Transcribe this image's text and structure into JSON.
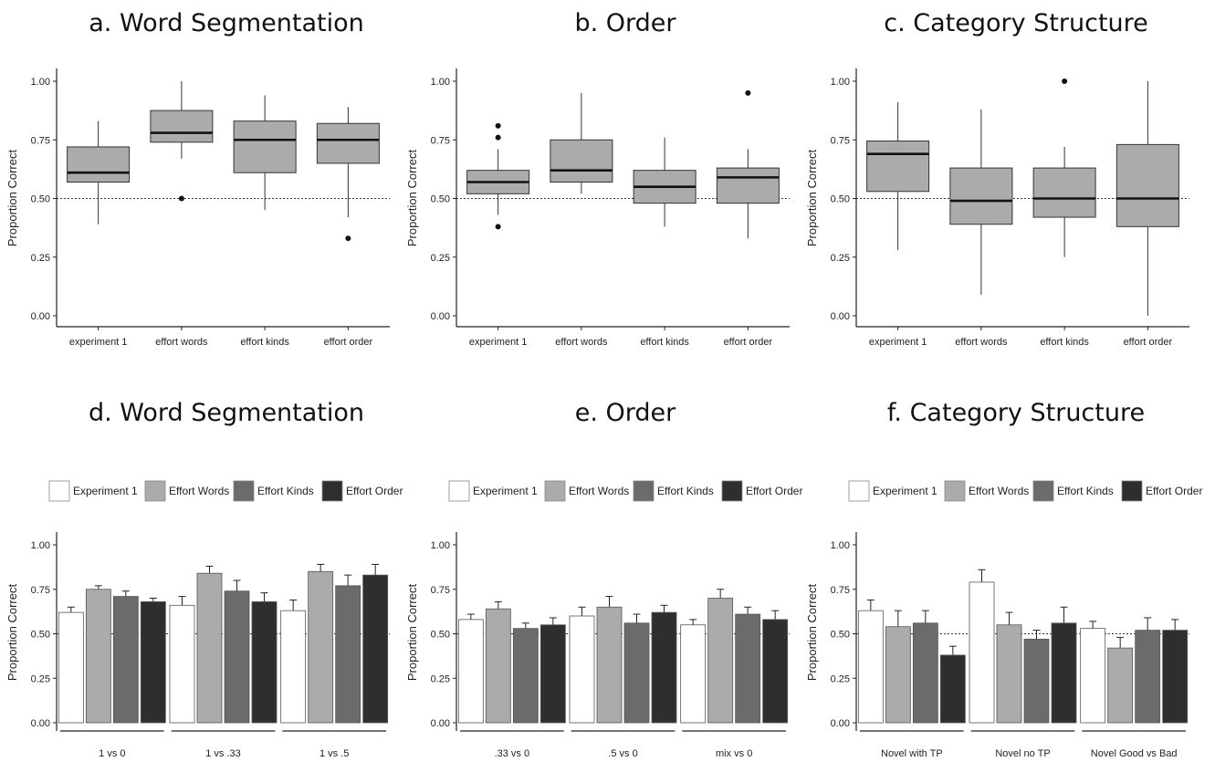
{
  "colors": {
    "box_fill": "#ababab",
    "series": [
      "#ffffff",
      "#ababab",
      "#6b6b6b",
      "#2e2e2e"
    ],
    "ink": "#222222"
  },
  "chart_data": [
    {
      "type": "box",
      "title": "a. Word Segmentation",
      "xlabel": "",
      "ylabel": "Proportion Correct",
      "ylim": [
        0,
        1
      ],
      "yticks": [
        "0.00",
        "0.25",
        "0.50",
        "0.75",
        "1.00"
      ],
      "reference_line": 0.5,
      "categories": [
        "experiment 1",
        "effort words",
        "effort kinds",
        "effort order"
      ],
      "boxes": [
        {
          "min": 0.39,
          "q1": 0.57,
          "median": 0.61,
          "q3": 0.72,
          "max": 0.83,
          "outliers": []
        },
        {
          "min": 0.67,
          "q1": 0.74,
          "median": 0.78,
          "q3": 0.875,
          "max": 1.0,
          "outliers": [
            0.5
          ]
        },
        {
          "min": 0.45,
          "q1": 0.61,
          "median": 0.75,
          "q3": 0.83,
          "max": 0.94,
          "outliers": []
        },
        {
          "min": 0.42,
          "q1": 0.65,
          "median": 0.75,
          "q3": 0.82,
          "max": 0.89,
          "outliers": [
            0.33
          ]
        }
      ]
    },
    {
      "type": "box",
      "title": "b. Order",
      "xlabel": "",
      "ylabel": "Proportion Correct",
      "ylim": [
        0,
        1
      ],
      "yticks": [
        "0.00",
        "0.25",
        "0.50",
        "0.75",
        "1.00"
      ],
      "reference_line": 0.5,
      "categories": [
        "experiment 1",
        "effort words",
        "effort kinds",
        "effort order"
      ],
      "boxes": [
        {
          "min": 0.43,
          "q1": 0.52,
          "median": 0.57,
          "q3": 0.62,
          "max": 0.71,
          "outliers": [
            0.81,
            0.76,
            0.38
          ]
        },
        {
          "min": 0.52,
          "q1": 0.57,
          "median": 0.62,
          "q3": 0.75,
          "max": 0.95,
          "outliers": []
        },
        {
          "min": 0.38,
          "q1": 0.48,
          "median": 0.55,
          "q3": 0.62,
          "max": 0.76,
          "outliers": []
        },
        {
          "min": 0.33,
          "q1": 0.48,
          "median": 0.59,
          "q3": 0.63,
          "max": 0.71,
          "outliers": [
            0.95
          ]
        }
      ]
    },
    {
      "type": "box",
      "title": "c. Category Structure",
      "xlabel": "",
      "ylabel": "Proportion Correct",
      "ylim": [
        0,
        1
      ],
      "yticks": [
        "0.00",
        "0.25",
        "0.50",
        "0.75",
        "1.00"
      ],
      "reference_line": 0.5,
      "categories": [
        "experiment 1",
        "effort words",
        "effort kinds",
        "effort order"
      ],
      "boxes": [
        {
          "min": 0.28,
          "q1": 0.53,
          "median": 0.69,
          "q3": 0.745,
          "max": 0.91,
          "outliers": []
        },
        {
          "min": 0.09,
          "q1": 0.39,
          "median": 0.49,
          "q3": 0.63,
          "max": 0.88,
          "outliers": []
        },
        {
          "min": 0.25,
          "q1": 0.42,
          "median": 0.5,
          "q3": 0.63,
          "max": 0.72,
          "outliers": [
            1.0
          ]
        },
        {
          "min": 0.0,
          "q1": 0.38,
          "median": 0.5,
          "q3": 0.73,
          "max": 1.0,
          "outliers": []
        }
      ]
    },
    {
      "type": "bar",
      "title": "d. Word Segmentation",
      "xlabel": "",
      "ylabel": "Proportion Correct",
      "ylim": [
        0,
        1
      ],
      "yticks": [
        "0.00",
        "0.25",
        "0.50",
        "0.75",
        "1.00"
      ],
      "reference_line": 0.5,
      "legend": [
        "Experiment 1",
        "Effort Words",
        "Effort Kinds",
        "Effort Order"
      ],
      "legend_position": "top",
      "categories": [
        "1 vs 0",
        "1 vs .33",
        "1 vs .5"
      ],
      "series": [
        {
          "name": "Experiment 1",
          "values": [
            0.62,
            0.66,
            0.63
          ],
          "errors": [
            0.03,
            0.05,
            0.06
          ]
        },
        {
          "name": "Effort Words",
          "values": [
            0.75,
            0.84,
            0.85
          ],
          "errors": [
            0.02,
            0.04,
            0.04
          ]
        },
        {
          "name": "Effort Kinds",
          "values": [
            0.71,
            0.74,
            0.77
          ],
          "errors": [
            0.03,
            0.06,
            0.06
          ]
        },
        {
          "name": "Effort Order",
          "values": [
            0.68,
            0.68,
            0.83
          ],
          "errors": [
            0.02,
            0.05,
            0.06
          ]
        }
      ]
    },
    {
      "type": "bar",
      "title": "e. Order",
      "xlabel": "",
      "ylabel": "Proportion Correct",
      "ylim": [
        0,
        1
      ],
      "yticks": [
        "0.00",
        "0.25",
        "0.50",
        "0.75",
        "1.00"
      ],
      "reference_line": 0.5,
      "legend": [
        "Experiment 1",
        "Effort Words",
        "Effort Kinds",
        "Effort Order"
      ],
      "legend_position": "top",
      "categories": [
        ".33 vs 0",
        ".5 vs 0",
        "mix vs 0"
      ],
      "series": [
        {
          "name": "Experiment 1",
          "values": [
            0.58,
            0.6,
            0.55
          ],
          "errors": [
            0.03,
            0.05,
            0.03
          ]
        },
        {
          "name": "Effort Words",
          "values": [
            0.64,
            0.65,
            0.7
          ],
          "errors": [
            0.04,
            0.06,
            0.05
          ]
        },
        {
          "name": "Effort Kinds",
          "values": [
            0.53,
            0.56,
            0.61
          ],
          "errors": [
            0.03,
            0.05,
            0.04
          ]
        },
        {
          "name": "Effort Order",
          "values": [
            0.55,
            0.62,
            0.58
          ],
          "errors": [
            0.04,
            0.04,
            0.05
          ]
        }
      ]
    },
    {
      "type": "bar",
      "title": "f. Category Structure",
      "xlabel": "",
      "ylabel": "Proportion Correct",
      "ylim": [
        0,
        1
      ],
      "yticks": [
        "0.00",
        "0.25",
        "0.50",
        "0.75",
        "1.00"
      ],
      "reference_line": 0.5,
      "legend": [
        "Experiment 1",
        "Effort Words",
        "Effort Kinds",
        "Effort Order"
      ],
      "legend_position": "top",
      "categories": [
        "Novel with TP",
        "Novel no TP",
        "Novel Good vs Bad"
      ],
      "series": [
        {
          "name": "Experiment 1",
          "values": [
            0.63,
            0.79,
            0.53
          ],
          "errors": [
            0.06,
            0.07,
            0.04
          ]
        },
        {
          "name": "Effort Words",
          "values": [
            0.54,
            0.55,
            0.42
          ],
          "errors": [
            0.09,
            0.07,
            0.06
          ]
        },
        {
          "name": "Effort Kinds",
          "values": [
            0.56,
            0.47,
            0.52
          ],
          "errors": [
            0.07,
            0.05,
            0.07
          ]
        },
        {
          "name": "Effort Order",
          "values": [
            0.38,
            0.56,
            0.52
          ],
          "errors": [
            0.05,
            0.09,
            0.06
          ]
        }
      ]
    }
  ]
}
